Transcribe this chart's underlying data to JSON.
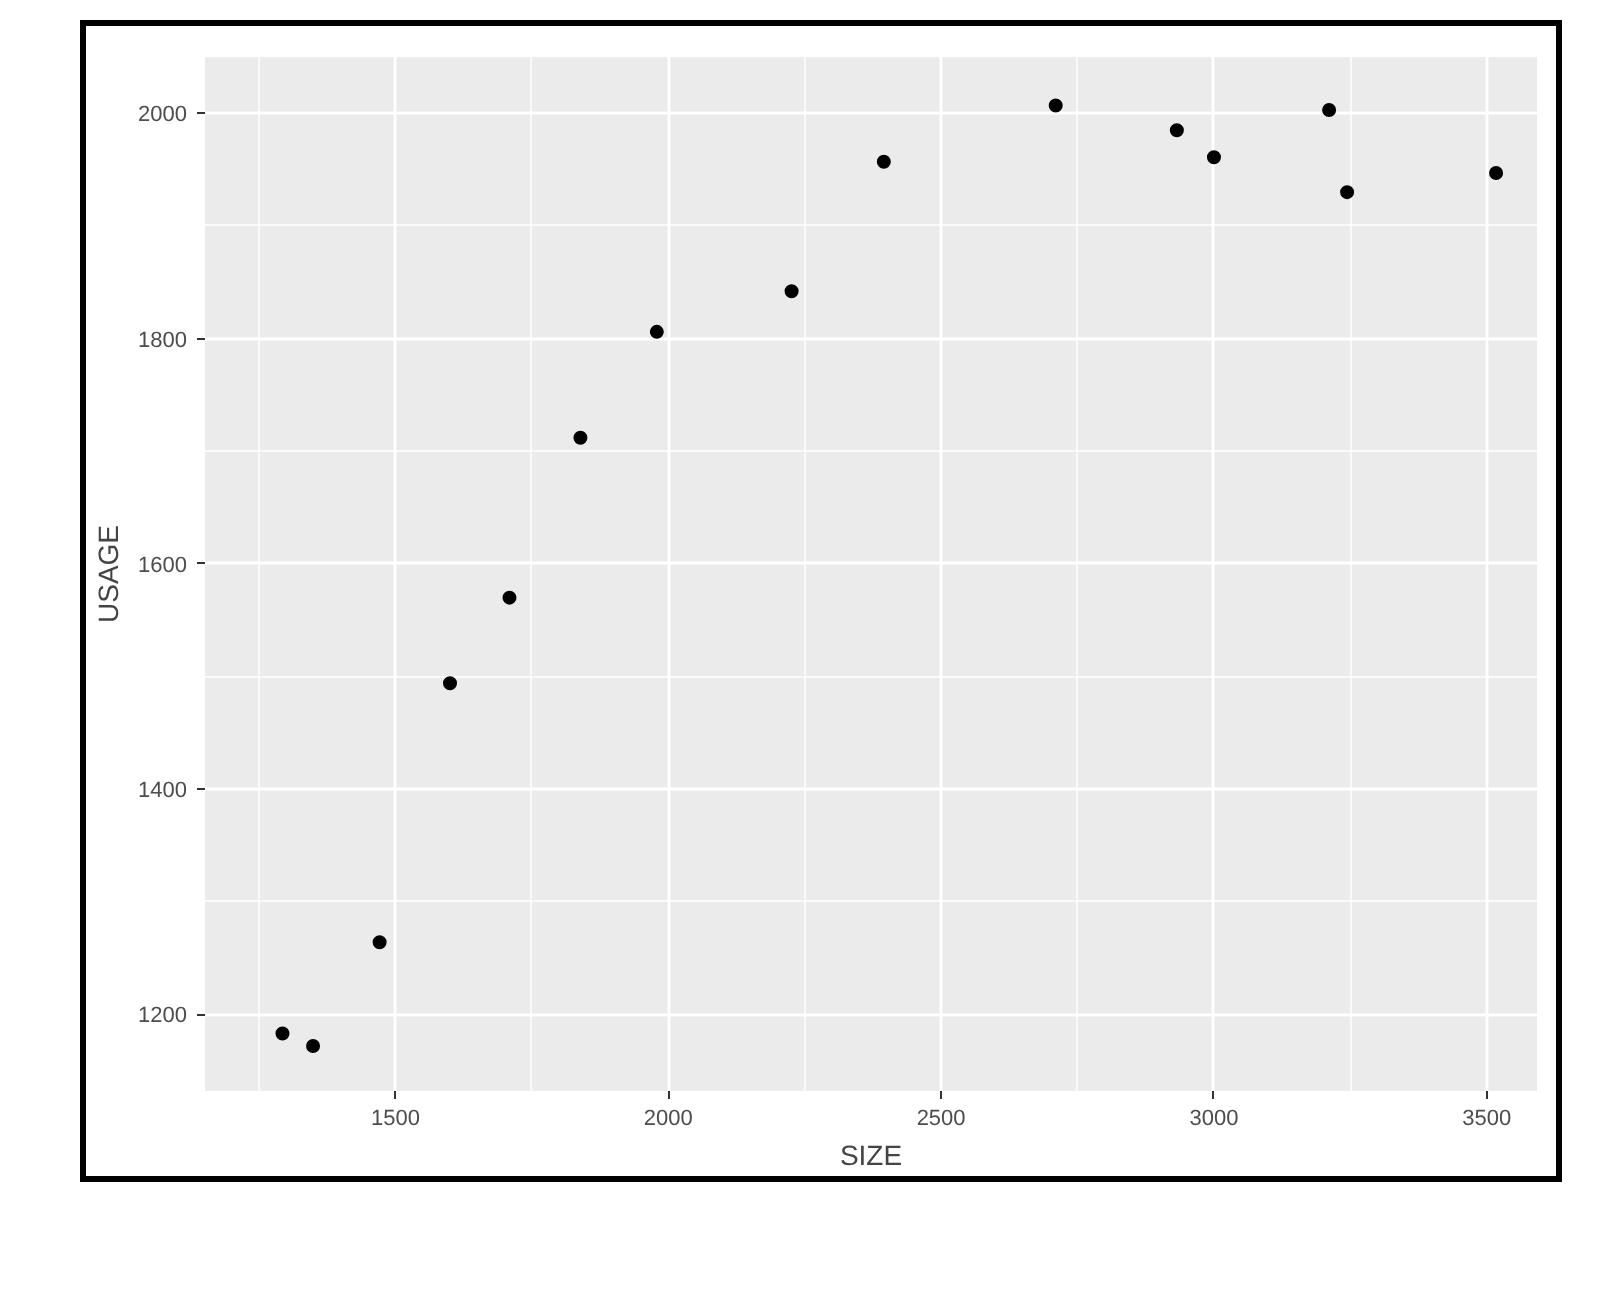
{
  "chart_data": {
    "type": "scatter",
    "xlabel": "SIZE",
    "ylabel": "USAGE",
    "x": [
      1293,
      1349,
      1471,
      1600,
      1709,
      1839,
      1979,
      2226,
      2395,
      2710,
      2932,
      3000,
      3211,
      3244,
      3517
    ],
    "values": [
      1183,
      1172,
      1264,
      1494,
      1570,
      1712,
      1806,
      1842,
      1957,
      2007,
      1985,
      1961,
      2003,
      1930,
      1947
    ],
    "color": "#000000",
    "marker": "circle",
    "xlim": [
      1151,
      3592
    ],
    "ylim": [
      1132,
      2050
    ],
    "xticks": [
      1500,
      2000,
      2500,
      3000,
      3500
    ],
    "yticks": [
      1200,
      1400,
      1600,
      1800,
      2000
    ],
    "grid": true
  }
}
